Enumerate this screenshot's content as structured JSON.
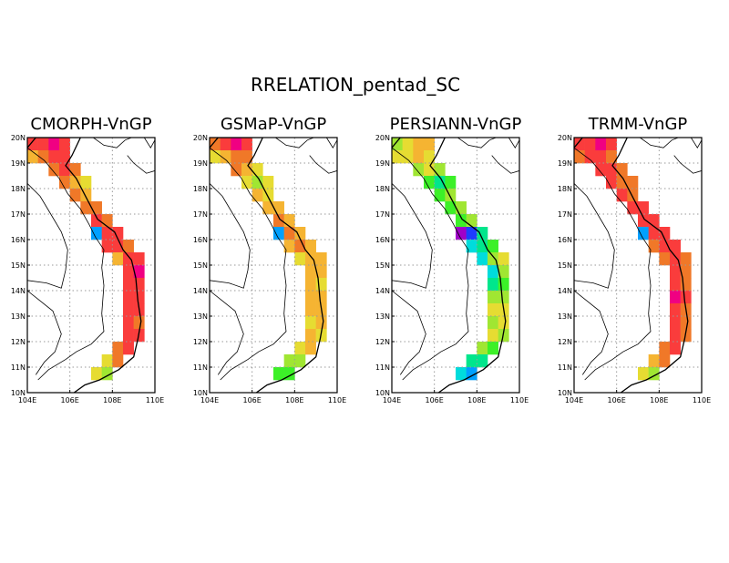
{
  "figure_title": "RRELATION_pentad_SC",
  "colors": {
    "background": "#ffffff",
    "frame": "#000000",
    "grid": "#9a9a9a",
    "coast": "#000000",
    "land_border": "#000000",
    "palette": [
      "#a000c8",
      "#1e3cff",
      "#00a0ff",
      "#00dcdc",
      "#00e68c",
      "#3cf028",
      "#a0e632",
      "#e6dc32",
      "#f5b432",
      "#f07828",
      "#fa3c3c",
      "#f00082"
    ]
  },
  "axes": {
    "lon_ticks": [
      "104E",
      "106E",
      "108E",
      "110E"
    ],
    "lat_ticks": [
      "10N",
      "11N",
      "12N",
      "13N",
      "14N",
      "15N",
      "16N",
      "17N",
      "18N",
      "19N",
      "20N"
    ],
    "lon_range": [
      104,
      110
    ],
    "lat_range": [
      10,
      20
    ],
    "grid_style": "dotted"
  },
  "panels": [
    {
      "id": "cmorph",
      "title": "CMORPH-VnGP",
      "cells": [
        [
          104.25,
          19.75,
          10
        ],
        [
          104.75,
          19.75,
          10
        ],
        [
          105.25,
          19.75,
          11
        ],
        [
          105.75,
          19.75,
          10
        ],
        [
          104.25,
          19.25,
          8
        ],
        [
          104.75,
          19.25,
          9
        ],
        [
          105.25,
          19.25,
          10
        ],
        [
          105.75,
          19.25,
          10
        ],
        [
          105.25,
          18.75,
          9
        ],
        [
          105.75,
          18.75,
          10
        ],
        [
          106.25,
          18.75,
          9
        ],
        [
          105.75,
          18.25,
          9
        ],
        [
          106.25,
          18.25,
          8
        ],
        [
          106.75,
          18.25,
          7
        ],
        [
          106.25,
          17.75,
          9
        ],
        [
          106.75,
          17.75,
          8
        ],
        [
          106.75,
          17.25,
          9
        ],
        [
          107.25,
          17.25,
          9
        ],
        [
          107.25,
          16.75,
          10
        ],
        [
          107.75,
          16.75,
          9
        ],
        [
          107.25,
          16.25,
          2
        ],
        [
          107.75,
          16.25,
          10
        ],
        [
          108.25,
          16.25,
          10
        ],
        [
          107.75,
          15.75,
          10
        ],
        [
          108.25,
          15.75,
          10
        ],
        [
          108.75,
          15.75,
          9
        ],
        [
          108.25,
          15.25,
          8
        ],
        [
          108.75,
          15.25,
          10
        ],
        [
          109.25,
          15.25,
          10
        ],
        [
          108.75,
          14.75,
          10
        ],
        [
          109.25,
          14.75,
          11
        ],
        [
          108.75,
          14.25,
          10
        ],
        [
          109.25,
          14.25,
          10
        ],
        [
          108.75,
          13.75,
          10
        ],
        [
          109.25,
          13.75,
          10
        ],
        [
          108.75,
          13.25,
          10
        ],
        [
          109.25,
          13.25,
          10
        ],
        [
          108.75,
          12.75,
          10
        ],
        [
          109.25,
          12.75,
          9
        ],
        [
          108.75,
          12.25,
          10
        ],
        [
          109.25,
          12.25,
          10
        ],
        [
          108.25,
          11.75,
          9
        ],
        [
          108.75,
          11.75,
          10
        ],
        [
          107.75,
          11.25,
          7
        ],
        [
          108.25,
          11.25,
          9
        ],
        [
          107.25,
          10.75,
          7
        ],
        [
          107.75,
          10.75,
          6
        ]
      ]
    },
    {
      "id": "gsmap",
      "title": "GSMaP-VnGP",
      "cells": [
        [
          104.25,
          19.75,
          9
        ],
        [
          104.75,
          19.75,
          10
        ],
        [
          105.25,
          19.75,
          11
        ],
        [
          105.75,
          19.75,
          10
        ],
        [
          104.25,
          19.25,
          7
        ],
        [
          104.75,
          19.25,
          8
        ],
        [
          105.25,
          19.25,
          9
        ],
        [
          105.75,
          19.25,
          9
        ],
        [
          105.25,
          18.75,
          9
        ],
        [
          105.75,
          18.75,
          8
        ],
        [
          106.25,
          18.75,
          7
        ],
        [
          105.75,
          18.25,
          7
        ],
        [
          106.25,
          18.25,
          6
        ],
        [
          106.75,
          18.25,
          7
        ],
        [
          106.25,
          17.75,
          8
        ],
        [
          106.75,
          17.75,
          7
        ],
        [
          106.75,
          17.25,
          8
        ],
        [
          107.25,
          17.25,
          8
        ],
        [
          107.25,
          16.75,
          9
        ],
        [
          107.75,
          16.75,
          8
        ],
        [
          107.25,
          16.25,
          2
        ],
        [
          107.75,
          16.25,
          9
        ],
        [
          108.25,
          16.25,
          8
        ],
        [
          107.75,
          15.75,
          8
        ],
        [
          108.25,
          15.75,
          9
        ],
        [
          108.75,
          15.75,
          8
        ],
        [
          108.25,
          15.25,
          7
        ],
        [
          108.75,
          15.25,
          8
        ],
        [
          109.25,
          15.25,
          8
        ],
        [
          108.75,
          14.75,
          8
        ],
        [
          109.25,
          14.75,
          8
        ],
        [
          108.75,
          14.25,
          8
        ],
        [
          109.25,
          14.25,
          7
        ],
        [
          108.75,
          13.75,
          8
        ],
        [
          109.25,
          13.75,
          8
        ],
        [
          108.75,
          13.25,
          8
        ],
        [
          109.25,
          13.25,
          8
        ],
        [
          108.75,
          12.75,
          7
        ],
        [
          109.25,
          12.75,
          8
        ],
        [
          108.75,
          12.25,
          8
        ],
        [
          109.25,
          12.25,
          7
        ],
        [
          108.25,
          11.75,
          7
        ],
        [
          108.75,
          11.75,
          8
        ],
        [
          107.75,
          11.25,
          6
        ],
        [
          108.25,
          11.25,
          6
        ],
        [
          107.25,
          10.75,
          5
        ],
        [
          107.75,
          10.75,
          5
        ]
      ]
    },
    {
      "id": "persiann",
      "title": "PERSIANN-VnGP",
      "cells": [
        [
          104.25,
          19.75,
          6
        ],
        [
          104.75,
          19.75,
          7
        ],
        [
          105.25,
          19.75,
          8
        ],
        [
          105.75,
          19.75,
          8
        ],
        [
          104.25,
          19.25,
          7
        ],
        [
          104.75,
          19.25,
          7
        ],
        [
          105.25,
          19.25,
          8
        ],
        [
          105.75,
          19.25,
          7
        ],
        [
          105.25,
          18.75,
          6
        ],
        [
          105.75,
          18.75,
          7
        ],
        [
          106.25,
          18.75,
          6
        ],
        [
          105.75,
          18.25,
          5
        ],
        [
          106.25,
          18.25,
          4
        ],
        [
          106.75,
          18.25,
          5
        ],
        [
          106.25,
          17.75,
          5
        ],
        [
          106.75,
          17.75,
          6
        ],
        [
          106.75,
          17.25,
          5
        ],
        [
          107.25,
          17.25,
          6
        ],
        [
          107.25,
          16.75,
          5
        ],
        [
          107.75,
          16.75,
          6
        ],
        [
          107.25,
          16.25,
          0
        ],
        [
          107.75,
          16.25,
          1
        ],
        [
          108.25,
          16.25,
          4
        ],
        [
          107.75,
          15.75,
          3
        ],
        [
          108.25,
          15.75,
          4
        ],
        [
          108.75,
          15.75,
          5
        ],
        [
          108.25,
          15.25,
          3
        ],
        [
          108.75,
          15.25,
          6
        ],
        [
          109.25,
          15.25,
          7
        ],
        [
          108.75,
          14.75,
          3
        ],
        [
          109.25,
          14.75,
          6
        ],
        [
          108.75,
          14.25,
          4
        ],
        [
          109.25,
          14.25,
          5
        ],
        [
          108.75,
          13.75,
          6
        ],
        [
          109.25,
          13.75,
          6
        ],
        [
          108.75,
          13.25,
          7
        ],
        [
          109.25,
          13.25,
          7
        ],
        [
          108.75,
          12.75,
          6
        ],
        [
          109.25,
          12.75,
          7
        ],
        [
          108.75,
          12.25,
          7
        ],
        [
          109.25,
          12.25,
          6
        ],
        [
          108.25,
          11.75,
          6
        ],
        [
          108.75,
          11.75,
          5
        ],
        [
          107.75,
          11.25,
          4
        ],
        [
          108.25,
          11.25,
          4
        ],
        [
          107.25,
          10.75,
          3
        ],
        [
          107.75,
          10.75,
          2
        ]
      ]
    },
    {
      "id": "trmm",
      "title": "TRMM-VnGP",
      "cells": [
        [
          104.25,
          19.75,
          10
        ],
        [
          104.75,
          19.75,
          10
        ],
        [
          105.25,
          19.75,
          11
        ],
        [
          105.75,
          19.75,
          10
        ],
        [
          104.25,
          19.25,
          9
        ],
        [
          104.75,
          19.25,
          10
        ],
        [
          105.25,
          19.25,
          10
        ],
        [
          105.75,
          19.25,
          9
        ],
        [
          105.25,
          18.75,
          10
        ],
        [
          105.75,
          18.75,
          10
        ],
        [
          106.25,
          18.75,
          9
        ],
        [
          105.75,
          18.25,
          10
        ],
        [
          106.25,
          18.25,
          9
        ],
        [
          106.75,
          18.25,
          9
        ],
        [
          106.25,
          17.75,
          10
        ],
        [
          106.75,
          17.75,
          9
        ],
        [
          106.75,
          17.25,
          10
        ],
        [
          107.25,
          17.25,
          10
        ],
        [
          107.25,
          16.75,
          10
        ],
        [
          107.75,
          16.75,
          10
        ],
        [
          107.25,
          16.25,
          2
        ],
        [
          107.75,
          16.25,
          10
        ],
        [
          108.25,
          16.25,
          10
        ],
        [
          107.75,
          15.75,
          9
        ],
        [
          108.25,
          15.75,
          10
        ],
        [
          108.75,
          15.75,
          10
        ],
        [
          108.25,
          15.25,
          9
        ],
        [
          108.75,
          15.25,
          10
        ],
        [
          109.25,
          15.25,
          9
        ],
        [
          108.75,
          14.75,
          10
        ],
        [
          109.25,
          14.75,
          9
        ],
        [
          108.75,
          14.25,
          10
        ],
        [
          109.25,
          14.25,
          9
        ],
        [
          108.75,
          13.75,
          11
        ],
        [
          109.25,
          13.75,
          10
        ],
        [
          108.75,
          13.25,
          10
        ],
        [
          109.25,
          13.25,
          9
        ],
        [
          108.75,
          12.75,
          10
        ],
        [
          109.25,
          12.75,
          9
        ],
        [
          108.75,
          12.25,
          10
        ],
        [
          109.25,
          12.25,
          9
        ],
        [
          108.25,
          11.75,
          9
        ],
        [
          108.75,
          11.75,
          10
        ],
        [
          107.75,
          11.25,
          8
        ],
        [
          108.25,
          11.25,
          9
        ],
        [
          107.25,
          10.75,
          7
        ],
        [
          107.75,
          10.75,
          6
        ]
      ]
    }
  ],
  "vietnam_coast": [
    [
      104.0,
      19.6
    ],
    [
      104.4,
      20.0
    ],
    [
      106.5,
      20.0
    ],
    [
      106.1,
      19.3
    ],
    [
      105.8,
      18.9
    ],
    [
      106.3,
      18.4
    ],
    [
      106.8,
      17.6
    ],
    [
      107.3,
      16.8
    ],
    [
      108.1,
      16.3
    ],
    [
      108.5,
      15.6
    ],
    [
      108.9,
      15.2
    ],
    [
      109.1,
      14.5
    ],
    [
      109.2,
      13.6
    ],
    [
      109.35,
      12.8
    ],
    [
      109.2,
      12.1
    ],
    [
      109.0,
      11.4
    ],
    [
      108.3,
      10.9
    ],
    [
      107.4,
      10.5
    ],
    [
      106.7,
      10.3
    ],
    [
      106.2,
      10.0
    ]
  ],
  "vietnam_inland_border": [
    [
      104.0,
      19.6
    ],
    [
      104.8,
      19.1
    ],
    [
      105.5,
      18.4
    ],
    [
      105.9,
      17.8
    ],
    [
      106.5,
      17.2
    ],
    [
      106.9,
      16.6
    ],
    [
      107.2,
      16.1
    ],
    [
      107.6,
      15.6
    ],
    [
      107.5,
      14.9
    ],
    [
      107.6,
      14.2
    ],
    [
      107.5,
      13.1
    ],
    [
      107.6,
      12.4
    ],
    [
      107.0,
      11.9
    ],
    [
      106.3,
      11.6
    ],
    [
      105.8,
      11.3
    ],
    [
      105.0,
      10.9
    ],
    [
      104.5,
      10.5
    ]
  ],
  "other_borders": [
    [
      [
        104.0,
        18.2
      ],
      [
        104.6,
        17.7
      ],
      [
        105.1,
        17.0
      ],
      [
        105.6,
        16.3
      ],
      [
        105.9,
        15.6
      ],
      [
        105.8,
        14.8
      ],
      [
        105.6,
        14.1
      ],
      [
        104.9,
        14.3
      ],
      [
        104.0,
        14.4
      ]
    ],
    [
      [
        104.0,
        14.0
      ],
      [
        104.6,
        13.6
      ],
      [
        105.2,
        13.2
      ],
      [
        105.6,
        12.3
      ],
      [
        105.3,
        11.6
      ],
      [
        104.8,
        11.2
      ],
      [
        104.4,
        10.7
      ]
    ],
    [
      [
        107.1,
        20.0
      ],
      [
        107.6,
        19.7
      ],
      [
        108.2,
        19.6
      ],
      [
        108.6,
        19.9
      ],
      [
        108.9,
        20.0
      ]
    ],
    [
      [
        108.7,
        19.3
      ],
      [
        109.0,
        19.0
      ],
      [
        109.6,
        18.6
      ],
      [
        110.0,
        18.7
      ]
    ],
    [
      [
        109.5,
        20.0
      ],
      [
        109.8,
        19.6
      ],
      [
        110.0,
        19.9
      ]
    ]
  ]
}
